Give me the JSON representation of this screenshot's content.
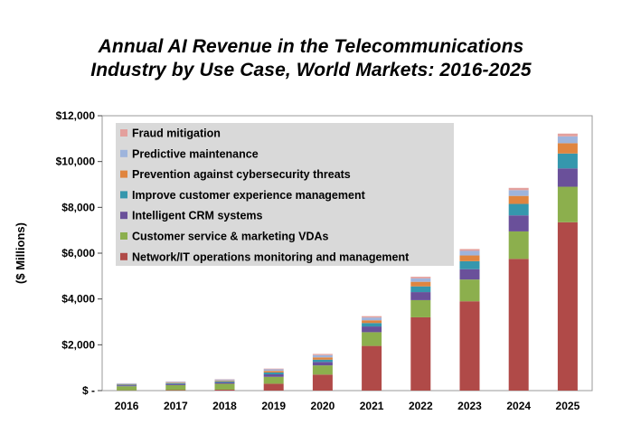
{
  "chart_data": {
    "type": "bar",
    "stacked": true,
    "title_lines": [
      "Annual AI Revenue in the Telecommunications",
      "Industry by Use Case, World Markets: 2016-2025"
    ],
    "ylabel": "($ Millions)",
    "xlabel": "",
    "ylim": [
      0,
      12000
    ],
    "y_ticks": [
      0,
      2000,
      4000,
      6000,
      8000,
      10000,
      12000
    ],
    "y_tick_labels": [
      "$ -",
      "$2,000",
      "$4,000",
      "$6,000",
      "$8,000",
      "$10,000",
      "$12,000"
    ],
    "grid": false,
    "legend_position": "top-left",
    "categories": [
      "2016",
      "2017",
      "2018",
      "2019",
      "2020",
      "2021",
      "2022",
      "2023",
      "2024",
      "2025"
    ],
    "series": [
      {
        "name": "Network/IT operations monitoring and management",
        "color": "#b04a48",
        "values": [
          10,
          20,
          40,
          300,
          700,
          1950,
          3200,
          3900,
          5750,
          7350
        ]
      },
      {
        "name": "Customer service & marketing VDAs",
        "color": "#8caf4d",
        "values": [
          180,
          220,
          260,
          300,
          400,
          600,
          750,
          950,
          1200,
          1550
        ]
      },
      {
        "name": "Intelligent CRM systems",
        "color": "#6a509a",
        "values": [
          40,
          50,
          60,
          110,
          150,
          250,
          350,
          450,
          700,
          800
        ]
      },
      {
        "name": "Improve customer experience management",
        "color": "#3597ad",
        "values": [
          30,
          35,
          45,
          80,
          100,
          150,
          250,
          350,
          500,
          650
        ]
      },
      {
        "name": "Prevention against cybersecurity threats",
        "color": "#e0853f",
        "values": [
          20,
          25,
          35,
          70,
          100,
          120,
          200,
          250,
          350,
          450
        ]
      },
      {
        "name": "Predictive maintenance",
        "color": "#9eb4dc",
        "values": [
          30,
          35,
          45,
          70,
          100,
          120,
          150,
          200,
          250,
          300
        ]
      },
      {
        "name": "Fraud mitigation",
        "color": "#e3a09d",
        "values": [
          10,
          15,
          15,
          30,
          50,
          60,
          70,
          80,
          100,
          120
        ]
      }
    ]
  }
}
